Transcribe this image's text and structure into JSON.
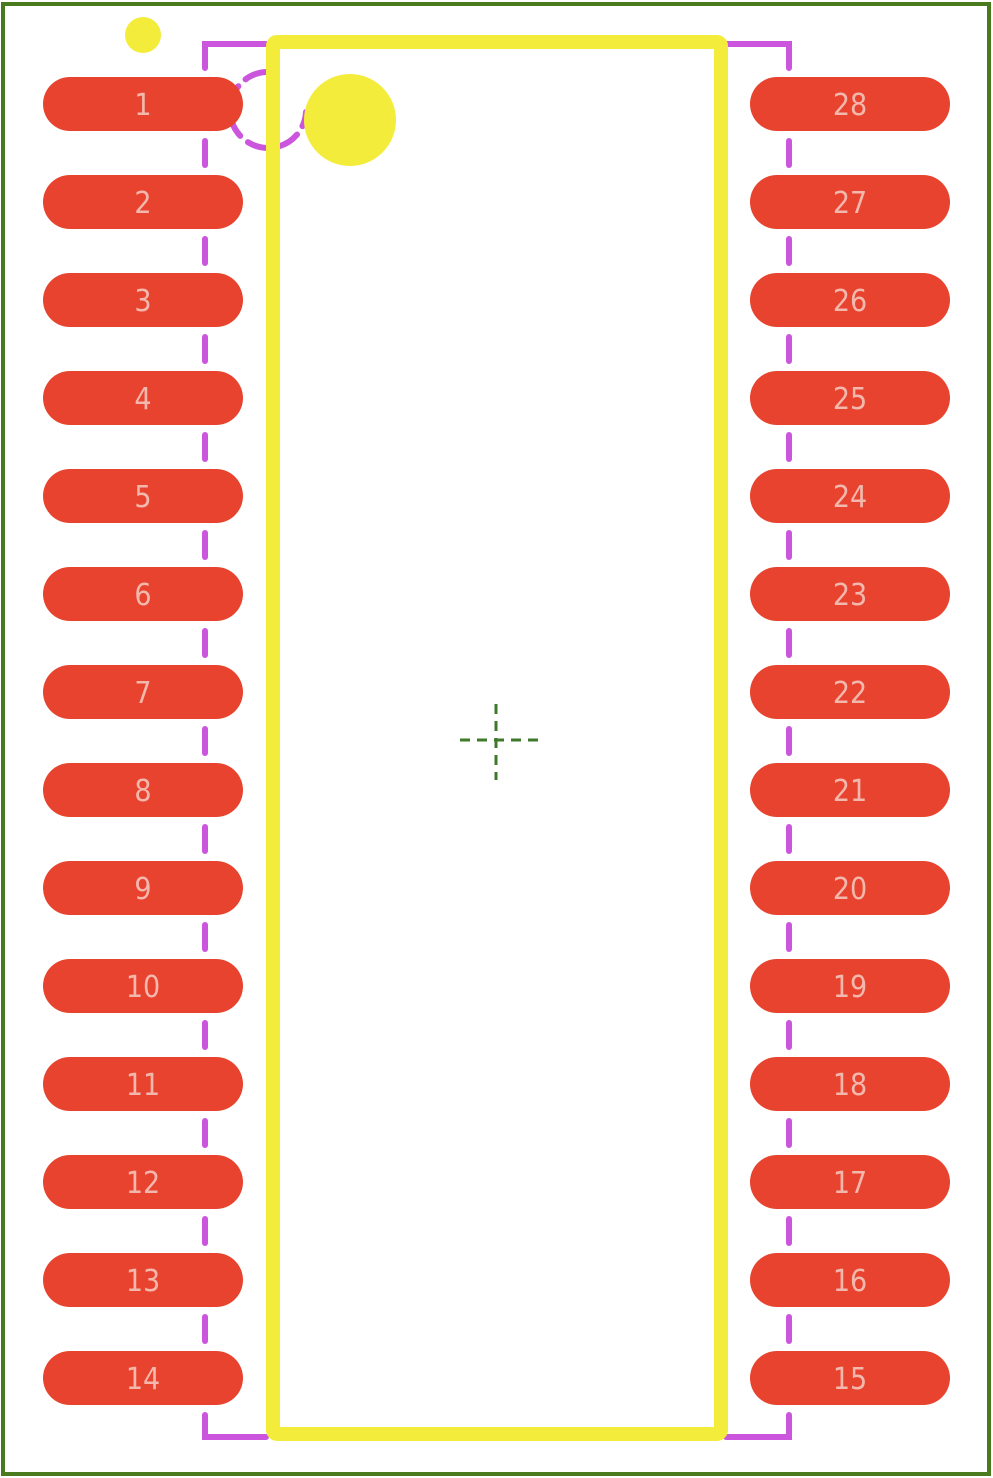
{
  "colors": {
    "background": "#ffffff",
    "board_outline": "#4a7a1e",
    "pad_fill": "#e8432e",
    "pad_label": "#f2b8ad",
    "silkscreen": "#f4ec3a",
    "assembly_outline": "#cc55dd",
    "origin_marker": "#3f7a2a"
  },
  "footprint": {
    "left_pins": [
      "1",
      "2",
      "3",
      "4",
      "5",
      "6",
      "7",
      "8",
      "9",
      "10",
      "11",
      "12",
      "13",
      "14"
    ],
    "right_pins": [
      "28",
      "27",
      "26",
      "25",
      "24",
      "23",
      "22",
      "21",
      "20",
      "19",
      "18",
      "17",
      "16",
      "15"
    ]
  }
}
